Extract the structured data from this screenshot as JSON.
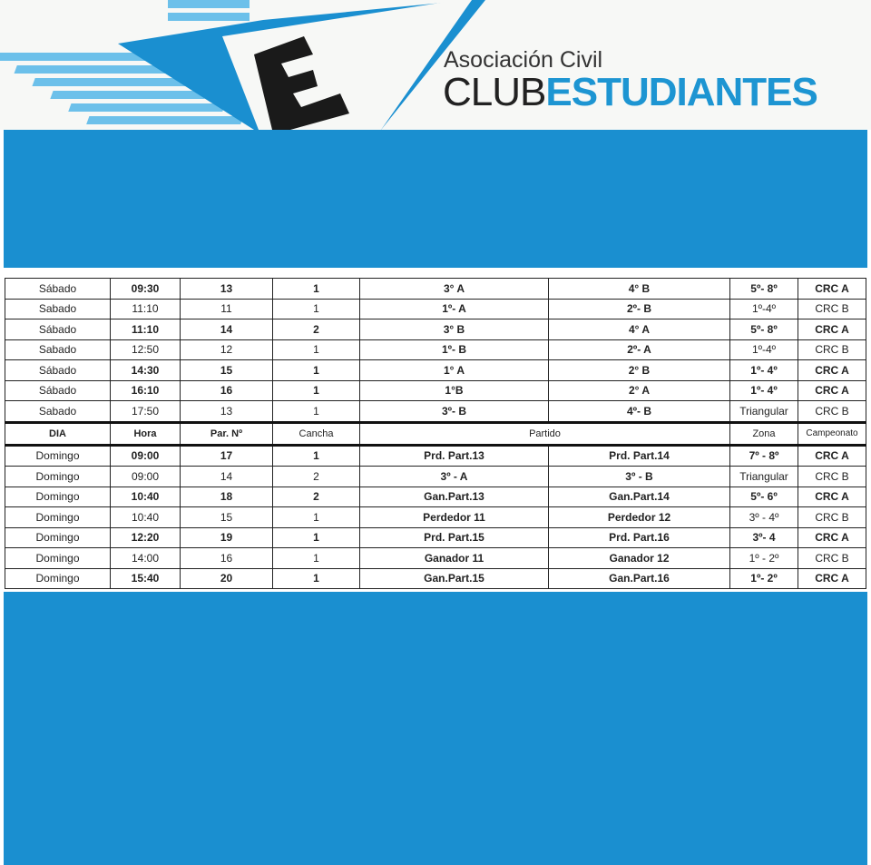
{
  "header": {
    "line1": "Asociación Civil",
    "club": "CLUB",
    "name": "ESTUDIANTES",
    "colors": {
      "brand_blue": "#1a8fd0",
      "star_light": "#6cc0ea",
      "e_black": "#1a1a1a"
    }
  },
  "table": {
    "headers": {
      "dia": "DIA",
      "hora": "Hora",
      "nro": "Par. Nº",
      "cancha": "Cancha",
      "partido": "Partido",
      "zona": "Zona",
      "campeonato": "Campeonato"
    },
    "saturday": [
      {
        "dia": "Sábado",
        "hora": "09:30",
        "nro": "13",
        "cancha": "1",
        "local": "3° A",
        "visit": "4° B",
        "zona": "5º- 8º",
        "camp": "CRC A"
      },
      {
        "dia": "Sabado",
        "hora": "11:10",
        "nro": "11",
        "cancha": "1",
        "local": "1º- A",
        "visit": "2º- B",
        "zona": "1º-4º",
        "camp": "CRC B"
      },
      {
        "dia": "Sábado",
        "hora": "11:10",
        "nro": "14",
        "cancha": "2",
        "local": "3° B",
        "visit": "4° A",
        "zona": "5º- 8º",
        "camp": "CRC A"
      },
      {
        "dia": "Sabado",
        "hora": "12:50",
        "nro": "12",
        "cancha": "1",
        "local": "1º- B",
        "visit": "2º- A",
        "zona": "1º-4º",
        "camp": "CRC B"
      },
      {
        "dia": "Sábado",
        "hora": "14:30",
        "nro": "15",
        "cancha": "1",
        "local": "1° A",
        "visit": "2° B",
        "zona": "1º- 4º",
        "camp": "CRC A"
      },
      {
        "dia": "Sábado",
        "hora": "16:10",
        "nro": "16",
        "cancha": "1",
        "local": "1°B",
        "visit": "2° A",
        "zona": "1º- 4º",
        "camp": "CRC A"
      },
      {
        "dia": "Sabado",
        "hora": "17:50",
        "nro": "13",
        "cancha": "1",
        "local": "3º- B",
        "visit": "4º- B",
        "zona": "Triangular",
        "camp": "CRC B"
      }
    ],
    "sunday": [
      {
        "dia": "Domingo",
        "hora": "09:00",
        "nro": "17",
        "cancha": "1",
        "local": "Prd. Part.13",
        "visit": "Prd. Part.14",
        "zona": "7º - 8º",
        "camp": "CRC A"
      },
      {
        "dia": "Domingo",
        "hora": "09:00",
        "nro": "14",
        "cancha": "2",
        "local": "3º - A",
        "visit": "3º - B",
        "zona": "Triangular",
        "camp": "CRC B"
      },
      {
        "dia": "Domingo",
        "hora": "10:40",
        "nro": "18",
        "cancha": "2",
        "local": "Gan.Part.13",
        "visit": "Gan.Part.14",
        "zona": "5º- 6º",
        "camp": "CRC A"
      },
      {
        "dia": "Domingo",
        "hora": "10:40",
        "nro": "15",
        "cancha": "1",
        "local": "Perdedor 11",
        "visit": "Perdedor 12",
        "zona": "3º - 4º",
        "camp": "CRC B"
      },
      {
        "dia": "Domingo",
        "hora": "12:20",
        "nro": "19",
        "cancha": "1",
        "local": "Prd. Part.15",
        "visit": "Prd. Part.16",
        "zona": "3º- 4",
        "camp": "CRC A"
      },
      {
        "dia": "Domingo",
        "hora": "14:00",
        "nro": "16",
        "cancha": "1",
        "local": "Ganador 11",
        "visit": "Ganador 12",
        "zona": "1º - 2º",
        "camp": "CRC B"
      },
      {
        "dia": "Domingo",
        "hora": "15:40",
        "nro": "20",
        "cancha": "1",
        "local": "Gan.Part.15",
        "visit": "Gan.Part.16",
        "zona": "1º- 2º",
        "camp": "CRC A"
      }
    ]
  }
}
